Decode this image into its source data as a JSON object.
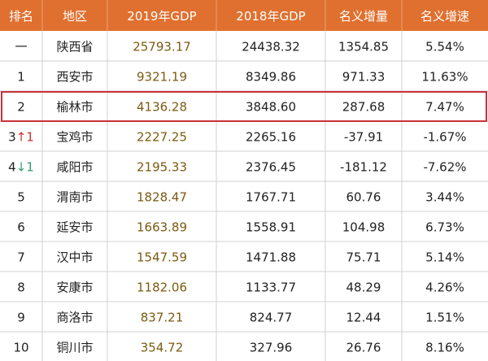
{
  "colors": {
    "header_bg": "#e0702f",
    "header_text": "#ffffff",
    "grid": "#d0d0d0",
    "text": "#222222",
    "gdp2019_text": "#7a5a10",
    "highlight_border": "#c8323a",
    "up_arrow": "#d0302a",
    "down_arrow": "#2e9e6a",
    "row_bg": "#ffffff"
  },
  "chart_data": {
    "type": "table",
    "highlight_row": 3,
    "columns": [
      "排名",
      "地区",
      "2019年GDP",
      "2018年GDP",
      "名义增量",
      "名义增速"
    ],
    "rows": [
      {
        "rank": "一",
        "rank_change": "",
        "rank_change_dir": "",
        "region": "陕西省",
        "gdp2019": "25793.17",
        "gdp2018": "24438.32",
        "increase": "1354.85",
        "growth": "5.54%"
      },
      {
        "rank": "1",
        "rank_change": "",
        "rank_change_dir": "",
        "region": "西安市",
        "gdp2019": "9321.19",
        "gdp2018": "8349.86",
        "increase": "971.33",
        "growth": "11.63%"
      },
      {
        "rank": "2",
        "rank_change": "",
        "rank_change_dir": "",
        "region": "榆林市",
        "gdp2019": "4136.28",
        "gdp2018": "3848.60",
        "increase": "287.68",
        "growth": "7.47%"
      },
      {
        "rank": "3",
        "rank_change": "1",
        "rank_change_dir": "up",
        "region": "宝鸡市",
        "gdp2019": "2227.25",
        "gdp2018": "2265.16",
        "increase": "-37.91",
        "growth": "-1.67%"
      },
      {
        "rank": "4",
        "rank_change": "1",
        "rank_change_dir": "down",
        "region": "咸阳市",
        "gdp2019": "2195.33",
        "gdp2018": "2376.45",
        "increase": "-181.12",
        "growth": "-7.62%"
      },
      {
        "rank": "5",
        "rank_change": "",
        "rank_change_dir": "",
        "region": "渭南市",
        "gdp2019": "1828.47",
        "gdp2018": "1767.71",
        "increase": "60.76",
        "growth": "3.44%"
      },
      {
        "rank": "6",
        "rank_change": "",
        "rank_change_dir": "",
        "region": "延安市",
        "gdp2019": "1663.89",
        "gdp2018": "1558.91",
        "increase": "104.98",
        "growth": "6.73%"
      },
      {
        "rank": "7",
        "rank_change": "",
        "rank_change_dir": "",
        "region": "汉中市",
        "gdp2019": "1547.59",
        "gdp2018": "1471.88",
        "increase": "75.71",
        "growth": "5.14%"
      },
      {
        "rank": "8",
        "rank_change": "",
        "rank_change_dir": "",
        "region": "安康市",
        "gdp2019": "1182.06",
        "gdp2018": "1133.77",
        "increase": "48.29",
        "growth": "4.26%"
      },
      {
        "rank": "9",
        "rank_change": "",
        "rank_change_dir": "",
        "region": "商洛市",
        "gdp2019": "837.21",
        "gdp2018": "824.77",
        "increase": "12.44",
        "growth": "1.51%"
      },
      {
        "rank": "10",
        "rank_change": "",
        "rank_change_dir": "",
        "region": "铜川市",
        "gdp2019": "354.72",
        "gdp2018": "327.96",
        "increase": "26.76",
        "growth": "8.16%"
      }
    ]
  }
}
